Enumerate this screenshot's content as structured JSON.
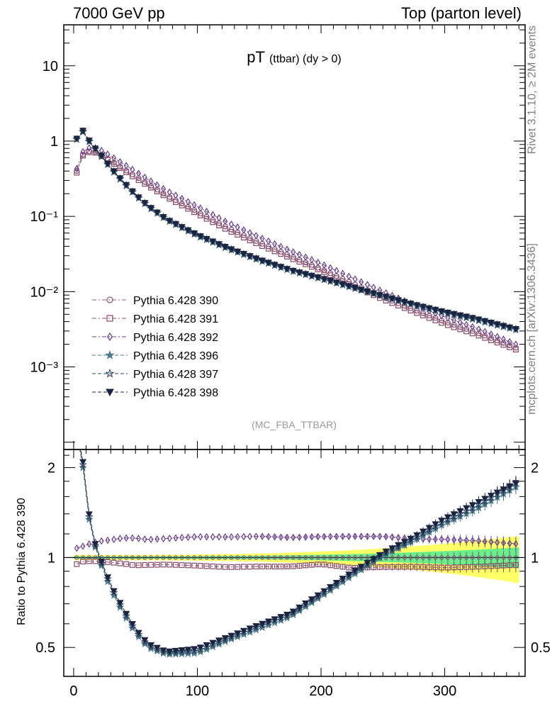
{
  "header": {
    "left": "7000 GeV pp",
    "right": "Top (parton level)"
  },
  "side_labels": {
    "rivet": "Rivet 3.1.10, ≥ 2M events",
    "mcplots": "mcplots.cern.ch [arXiv:1306.3436]"
  },
  "chart_data": {
    "type": "scatter",
    "title": "pT",
    "title_sub": "(ttbar) (dy > 0)",
    "watermark": "(MC_FBA_TTBAR)",
    "xlabel": "",
    "ylabel": "",
    "ratio_ylabel": "Ratio to Pythia 6.428 390",
    "xlim": [
      -8,
      365
    ],
    "ylim": [
      8e-05,
      35
    ],
    "yscale": "log",
    "ratio_ylim": [
      0.4,
      2.3
    ],
    "ratio_yscale": "log",
    "legend_position": "bottom-left",
    "x_ticks": [
      "0",
      "100",
      "200",
      "300"
    ],
    "y_ticks": [
      "10",
      "1",
      "10⁻¹",
      "10⁻²",
      "10⁻³"
    ],
    "ratio_ticks": [
      "2",
      "1",
      "0.5"
    ],
    "bin_width": 5,
    "band": {
      "color_outer": "#ffff66",
      "color_inner": "#66ee88"
    },
    "series": [
      {
        "name": "Pythia 6.428 390",
        "marker": "circle",
        "color": "#8a5a84",
        "line": "dashdot",
        "points": [
          [
            2.5,
            0.4
          ],
          [
            7.5,
            0.66
          ],
          [
            12.5,
            0.73
          ],
          [
            17.5,
            0.72
          ],
          [
            22.5,
            0.66
          ],
          [
            30,
            0.55
          ],
          [
            40,
            0.43
          ],
          [
            50,
            0.34
          ],
          [
            60,
            0.27
          ],
          [
            75,
            0.19
          ],
          [
            100,
            0.115
          ],
          [
            125,
            0.07
          ],
          [
            150,
            0.045
          ],
          [
            175,
            0.03
          ],
          [
            200,
            0.02
          ],
          [
            225,
            0.013
          ],
          [
            250,
            0.0085
          ],
          [
            275,
            0.0058
          ],
          [
            300,
            0.004
          ],
          [
            325,
            0.0029
          ],
          [
            357.5,
            0.0018
          ]
        ]
      },
      {
        "name": "Pythia 6.428 391",
        "marker": "square",
        "color": "#8a4a66",
        "line": "dashdot",
        "points": [
          [
            2.5,
            0.38
          ],
          [
            7.5,
            0.64
          ],
          [
            12.5,
            0.71
          ],
          [
            17.5,
            0.7
          ],
          [
            22.5,
            0.64
          ],
          [
            30,
            0.53
          ],
          [
            40,
            0.41
          ],
          [
            50,
            0.32
          ],
          [
            60,
            0.255
          ],
          [
            75,
            0.18
          ],
          [
            100,
            0.108
          ],
          [
            125,
            0.065
          ],
          [
            150,
            0.042
          ],
          [
            175,
            0.028
          ],
          [
            200,
            0.019
          ],
          [
            225,
            0.012
          ],
          [
            250,
            0.0079
          ],
          [
            275,
            0.0054
          ],
          [
            300,
            0.0037
          ],
          [
            325,
            0.0027
          ],
          [
            357.5,
            0.0017
          ]
        ]
      },
      {
        "name": "Pythia 6.428 392",
        "marker": "diamond",
        "color": "#6a3e8c",
        "line": "dashdot",
        "points": [
          [
            2.5,
            0.43
          ],
          [
            7.5,
            0.72
          ],
          [
            12.5,
            0.81
          ],
          [
            17.5,
            0.81
          ],
          [
            22.5,
            0.75
          ],
          [
            30,
            0.63
          ],
          [
            40,
            0.5
          ],
          [
            50,
            0.395
          ],
          [
            60,
            0.31
          ],
          [
            75,
            0.22
          ],
          [
            100,
            0.135
          ],
          [
            125,
            0.082
          ],
          [
            150,
            0.053
          ],
          [
            175,
            0.035
          ],
          [
            200,
            0.0235
          ],
          [
            225,
            0.0153
          ],
          [
            250,
            0.01
          ],
          [
            275,
            0.0067
          ],
          [
            300,
            0.0046
          ],
          [
            325,
            0.0033
          ],
          [
            357.5,
            0.002
          ]
        ]
      },
      {
        "name": "Pythia 6.428 396",
        "marker": "star",
        "color": "#4a7a8a",
        "line": "dashed",
        "points": [
          [
            2.5,
            1.05
          ],
          [
            7.5,
            1.32
          ],
          [
            12.5,
            0.98
          ],
          [
            17.5,
            0.78
          ],
          [
            22.5,
            0.62
          ],
          [
            30,
            0.43
          ],
          [
            40,
            0.28
          ],
          [
            50,
            0.19
          ],
          [
            60,
            0.135
          ],
          [
            75,
            0.09
          ],
          [
            100,
            0.055
          ],
          [
            125,
            0.037
          ],
          [
            150,
            0.026
          ],
          [
            175,
            0.019
          ],
          [
            200,
            0.0148
          ],
          [
            225,
            0.0113
          ],
          [
            250,
            0.0086
          ],
          [
            275,
            0.0066
          ],
          [
            300,
            0.0052
          ],
          [
            325,
            0.0042
          ],
          [
            357.5,
            0.0031
          ]
        ]
      },
      {
        "name": "Pythia 6.428 397",
        "marker": "star-open",
        "color": "#2e4a66",
        "line": "dashed",
        "points": [
          [
            2.5,
            1.06
          ],
          [
            7.5,
            1.35
          ],
          [
            12.5,
            1.0
          ],
          [
            17.5,
            0.79
          ],
          [
            22.5,
            0.63
          ],
          [
            30,
            0.44
          ],
          [
            40,
            0.285
          ],
          [
            50,
            0.193
          ],
          [
            60,
            0.137
          ],
          [
            75,
            0.091
          ],
          [
            100,
            0.056
          ],
          [
            125,
            0.0375
          ],
          [
            150,
            0.0265
          ],
          [
            175,
            0.0193
          ],
          [
            200,
            0.015
          ],
          [
            225,
            0.0115
          ],
          [
            250,
            0.0087
          ],
          [
            275,
            0.0067
          ],
          [
            300,
            0.0053
          ],
          [
            325,
            0.0043
          ],
          [
            357.5,
            0.0032
          ]
        ]
      },
      {
        "name": "Pythia 6.428 398",
        "marker": "triangle-down",
        "color": "#1a2440",
        "line": "dashed",
        "points": [
          [
            2.5,
            1.08
          ],
          [
            7.5,
            1.38
          ],
          [
            12.5,
            1.02
          ],
          [
            17.5,
            0.8
          ],
          [
            22.5,
            0.64
          ],
          [
            30,
            0.445
          ],
          [
            40,
            0.29
          ],
          [
            50,
            0.196
          ],
          [
            60,
            0.139
          ],
          [
            75,
            0.092
          ],
          [
            100,
            0.057
          ],
          [
            125,
            0.038
          ],
          [
            150,
            0.0268
          ],
          [
            175,
            0.0195
          ],
          [
            200,
            0.0152
          ],
          [
            225,
            0.0116
          ],
          [
            250,
            0.0088
          ],
          [
            275,
            0.0068
          ],
          [
            300,
            0.0054
          ],
          [
            325,
            0.0044
          ],
          [
            357.5,
            0.0032
          ]
        ]
      }
    ]
  }
}
